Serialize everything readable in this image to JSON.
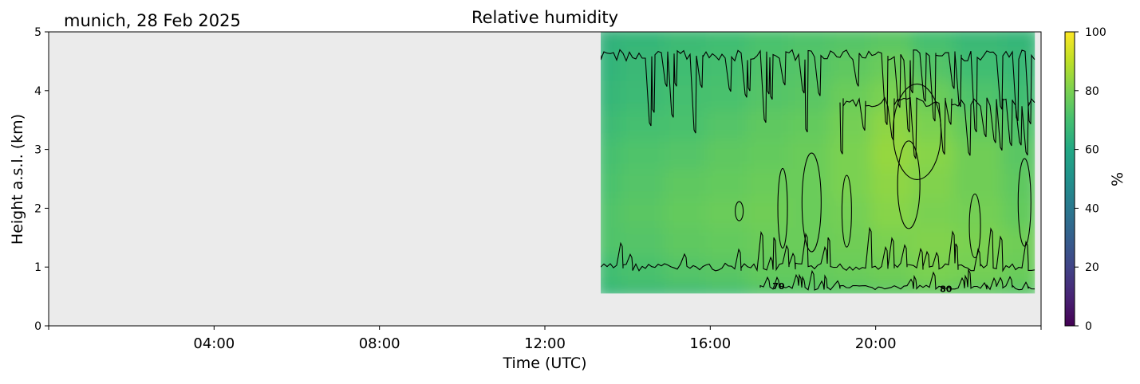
{
  "chart_data": {
    "type": "heatmap",
    "title": "Relative humidity",
    "location_date": "munich, 28 Feb 2025",
    "xlabel": "Time (UTC)",
    "ylabel": "Height a.s.l. (km)",
    "xlim_hours": [
      0,
      24
    ],
    "xticks": [
      {
        "hour": 4,
        "label": "04:00"
      },
      {
        "hour": 8,
        "label": "08:00"
      },
      {
        "hour": 12,
        "label": "12:00"
      },
      {
        "hour": 16,
        "label": "16:00"
      },
      {
        "hour": 20,
        "label": "20:00"
      }
    ],
    "ylim_km": [
      0,
      5
    ],
    "yticks": [
      0,
      1,
      2,
      3,
      4,
      5
    ],
    "data_extent": {
      "time_start_hour": 13.35,
      "time_end_hour": 23.85,
      "height_min_km": 0.55,
      "height_max_km": 5.0
    },
    "no_data_color": "#ebebeb",
    "colorbar": {
      "label": "%",
      "colormap": "viridis",
      "range": [
        0,
        100
      ],
      "ticks": [
        0,
        20,
        40,
        60,
        80,
        100
      ]
    },
    "contour_levels": [
      70,
      80
    ],
    "contour_labels": [
      {
        "text": "70",
        "hour": 17.65,
        "km": 0.68
      },
      {
        "text": "80",
        "hour": 21.7,
        "km": 0.63
      }
    ],
    "humidity_grid": {
      "heights_km": [
        0.55,
        1.0,
        1.5,
        2.0,
        2.5,
        3.0,
        3.5,
        4.0,
        4.5,
        5.0
      ],
      "times_hour": [
        13.35,
        14.5,
        15.5,
        16.5,
        17.5,
        18.5,
        19.5,
        20.5,
        21.5,
        22.5,
        23.85
      ],
      "values_pct": [
        [
          66,
          67,
          68,
          69,
          72,
          73,
          73,
          74,
          75,
          74,
          73
        ],
        [
          69,
          71,
          73,
          74,
          76,
          76,
          77,
          78,
          80,
          79,
          77
        ],
        [
          72,
          73,
          75,
          76,
          77,
          77,
          78,
          80,
          81,
          80,
          78
        ],
        [
          72,
          74,
          76,
          77,
          78,
          77,
          79,
          82,
          80,
          79,
          76
        ],
        [
          71,
          73,
          75,
          76,
          77,
          77,
          80,
          83,
          81,
          78,
          75
        ],
        [
          70,
          72,
          73,
          75,
          76,
          77,
          80,
          84,
          82,
          78,
          74
        ],
        [
          68,
          70,
          71,
          73,
          75,
          76,
          79,
          83,
          80,
          76,
          72
        ],
        [
          66,
          68,
          70,
          71,
          73,
          74,
          77,
          80,
          77,
          72,
          69
        ],
        [
          65,
          67,
          69,
          70,
          72,
          73,
          75,
          77,
          73,
          69,
          67
        ],
        [
          64,
          66,
          68,
          69,
          71,
          72,
          73,
          74,
          70,
          67,
          66
        ]
      ]
    }
  }
}
